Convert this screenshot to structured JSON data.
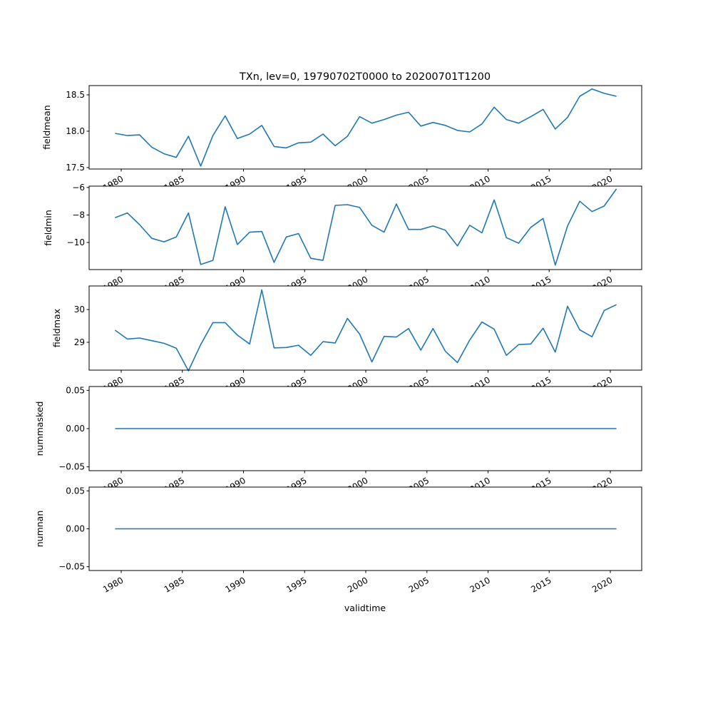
{
  "chart_data": [
    {
      "type": "line",
      "title": "TXn, lev=0, 19790702T0000 to 20200701T1200",
      "xlabel": "validtime",
      "ylabel": "fieldmean",
      "x_start_year": 1979.5,
      "x_ticks": [
        "1980",
        "1985",
        "1990",
        "1995",
        "2000",
        "2005",
        "2010",
        "2015",
        "2020"
      ],
      "xlim": [
        1976.8,
        2022.4
      ],
      "ylim": [
        17.48,
        18.627
      ],
      "y_ticks": [
        17.5,
        18.0,
        18.5
      ],
      "y_tick_labels": [
        "17.5",
        "18.0",
        "18.5"
      ],
      "values": [
        17.97,
        17.94,
        17.95,
        17.78,
        17.69,
        17.64,
        17.93,
        17.52,
        17.94,
        18.21,
        17.9,
        17.96,
        18.08,
        17.79,
        17.77,
        17.84,
        17.85,
        17.96,
        17.8,
        17.93,
        18.2,
        18.11,
        18.16,
        18.22,
        18.26,
        18.07,
        18.12,
        18.08,
        18.01,
        17.99,
        18.1,
        18.33,
        18.16,
        18.11,
        18.2,
        18.3,
        18.03,
        18.19,
        18.48,
        18.58,
        18.52,
        18.48
      ],
      "color": "#1f77b4"
    },
    {
      "type": "line",
      "ylabel": "fieldmin",
      "x_start_year": 1979.5,
      "x_ticks": [
        "1980",
        "1985",
        "1990",
        "1995",
        "2000",
        "2005",
        "2010",
        "2015",
        "2020"
      ],
      "xlim": [
        1976.8,
        2022.4
      ],
      "ylim": [
        -11.97,
        -5.9
      ],
      "y_ticks": [
        -10,
        -8,
        -6
      ],
      "y_tick_labels": [
        "−10",
        "−8",
        "−6"
      ],
      "values": [
        -8.2,
        -7.85,
        -8.7,
        -9.7,
        -9.95,
        -9.6,
        -7.85,
        -11.6,
        -11.3,
        -7.4,
        -10.15,
        -9.25,
        -9.2,
        -11.45,
        -9.6,
        -9.35,
        -11.15,
        -11.3,
        -7.3,
        -7.25,
        -7.45,
        -8.75,
        -9.25,
        -7.2,
        -9.05,
        -9.05,
        -8.8,
        -9.1,
        -10.25,
        -8.75,
        -9.3,
        -6.9,
        -9.65,
        -10.05,
        -8.9,
        -8.25,
        -11.65,
        -8.8,
        -7.0,
        -7.75,
        -7.35,
        -6.1
      ],
      "color": "#1f77b4"
    },
    {
      "type": "line",
      "ylabel": "fieldmax",
      "x_start_year": 1979.5,
      "x_ticks": [
        "1980",
        "1985",
        "1990",
        "1995",
        "2000",
        "2005",
        "2010",
        "2015",
        "2020"
      ],
      "xlim": [
        1976.8,
        2022.4
      ],
      "ylim": [
        28.15,
        30.72
      ],
      "y_ticks": [
        29,
        30
      ],
      "y_tick_labels": [
        "29",
        "30"
      ],
      "values": [
        29.37,
        29.1,
        29.13,
        29.05,
        28.97,
        28.82,
        28.13,
        28.93,
        29.6,
        29.6,
        29.22,
        28.95,
        30.6,
        28.83,
        28.84,
        28.91,
        28.6,
        29.02,
        28.98,
        29.73,
        29.25,
        28.4,
        29.18,
        29.16,
        29.42,
        28.76,
        29.42,
        28.73,
        28.38,
        29.07,
        29.62,
        29.4,
        28.6,
        28.93,
        28.95,
        29.43,
        28.7,
        30.1,
        29.38,
        29.17,
        29.97,
        30.15
      ],
      "color": "#1f77b4"
    },
    {
      "type": "line",
      "ylabel": "nummasked",
      "x_start_year": 1979.5,
      "x_ticks": [
        "1980",
        "1985",
        "1990",
        "1995",
        "2000",
        "2005",
        "2010",
        "2015",
        "2020"
      ],
      "xlim": [
        1976.8,
        2022.4
      ],
      "ylim": [
        -0.055,
        0.055
      ],
      "y_ticks": [
        -0.05,
        0.0,
        0.05
      ],
      "y_tick_labels": [
        "−0.05",
        "0.00",
        "0.05"
      ],
      "values": [
        0,
        0,
        0,
        0,
        0,
        0,
        0,
        0,
        0,
        0,
        0,
        0,
        0,
        0,
        0,
        0,
        0,
        0,
        0,
        0,
        0,
        0,
        0,
        0,
        0,
        0,
        0,
        0,
        0,
        0,
        0,
        0,
        0,
        0,
        0,
        0,
        0,
        0,
        0,
        0,
        0,
        0
      ],
      "color": "#1f77b4"
    },
    {
      "type": "line",
      "ylabel": "numnan",
      "x_start_year": 1979.5,
      "x_ticks": [
        "1980",
        "1985",
        "1990",
        "1995",
        "2000",
        "2005",
        "2010",
        "2015",
        "2020"
      ],
      "xlim": [
        1976.8,
        2022.4
      ],
      "ylim": [
        -0.055,
        0.055
      ],
      "y_ticks": [
        -0.05,
        0.0,
        0.05
      ],
      "y_tick_labels": [
        "−0.05",
        "0.00",
        "0.05"
      ],
      "values": [
        0,
        0,
        0,
        0,
        0,
        0,
        0,
        0,
        0,
        0,
        0,
        0,
        0,
        0,
        0,
        0,
        0,
        0,
        0,
        0,
        0,
        0,
        0,
        0,
        0,
        0,
        0,
        0,
        0,
        0,
        0,
        0,
        0,
        0,
        0,
        0,
        0,
        0,
        0,
        0,
        0,
        0
      ],
      "color": "#1f77b4"
    }
  ]
}
